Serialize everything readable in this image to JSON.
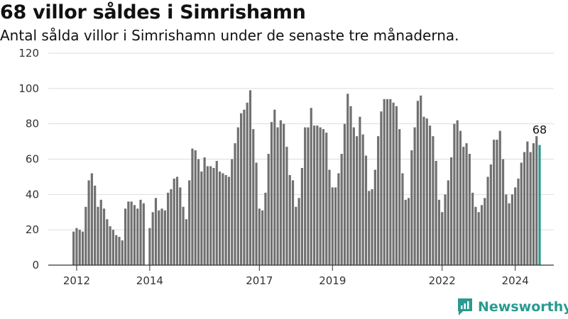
{
  "header": {
    "title": "68 villor såldes i Simrishamn",
    "subtitle": "Antal sålda villor i Simrishamn under de senaste tre månaderna."
  },
  "brand": {
    "name": "Newsworthy",
    "icon": "newsworthy-logo-icon"
  },
  "colors": {
    "bar": "#707070",
    "highlight": "#2a9a8f",
    "grid": "#dddddd",
    "axis": "#333333"
  },
  "chart_data": {
    "type": "bar",
    "x_start": "2011-12",
    "x_interval": "month",
    "ylim": [
      0,
      120
    ],
    "yticks": [
      0,
      20,
      40,
      60,
      80,
      100,
      120
    ],
    "xticks": [
      {
        "label": "2012",
        "date": "2012-01"
      },
      {
        "label": "2014",
        "date": "2014-01"
      },
      {
        "label": "2017",
        "date": "2017-01"
      },
      {
        "label": "2019",
        "date": "2019-01"
      },
      {
        "label": "2022",
        "date": "2022-01"
      },
      {
        "label": "2024",
        "date": "2024-01"
      }
    ],
    "grid": true,
    "highlight_last": true,
    "last_value_label": "68",
    "values": [
      19,
      21,
      20,
      19,
      33,
      48,
      52,
      45,
      33,
      37,
      32,
      26,
      22,
      20,
      17,
      16,
      14,
      32,
      36,
      36,
      34,
      32,
      37,
      35,
      null,
      21,
      30,
      38,
      31,
      32,
      31,
      41,
      43,
      49,
      50,
      44,
      33,
      26,
      48,
      66,
      65,
      60,
      53,
      61,
      56,
      56,
      55,
      59,
      53,
      52,
      51,
      50,
      60,
      69,
      78,
      86,
      88,
      92,
      99,
      77,
      58,
      32,
      31,
      41,
      63,
      81,
      88,
      78,
      82,
      80,
      67,
      51,
      48,
      33,
      38,
      55,
      78,
      78,
      89,
      79,
      79,
      78,
      77,
      75,
      54,
      44,
      44,
      52,
      63,
      80,
      97,
      90,
      78,
      73,
      84,
      74,
      62,
      42,
      43,
      54,
      73,
      87,
      94,
      94,
      94,
      92,
      90,
      77,
      52,
      37,
      38,
      65,
      78,
      93,
      96,
      84,
      83,
      79,
      73,
      59,
      37,
      30,
      40,
      48,
      61,
      80,
      82,
      76,
      67,
      69,
      63,
      41,
      33,
      30,
      34,
      38,
      50,
      57,
      71,
      71,
      76,
      60,
      40,
      35,
      40,
      44,
      49,
      58,
      64,
      70,
      64,
      69,
      73,
      68
    ]
  }
}
